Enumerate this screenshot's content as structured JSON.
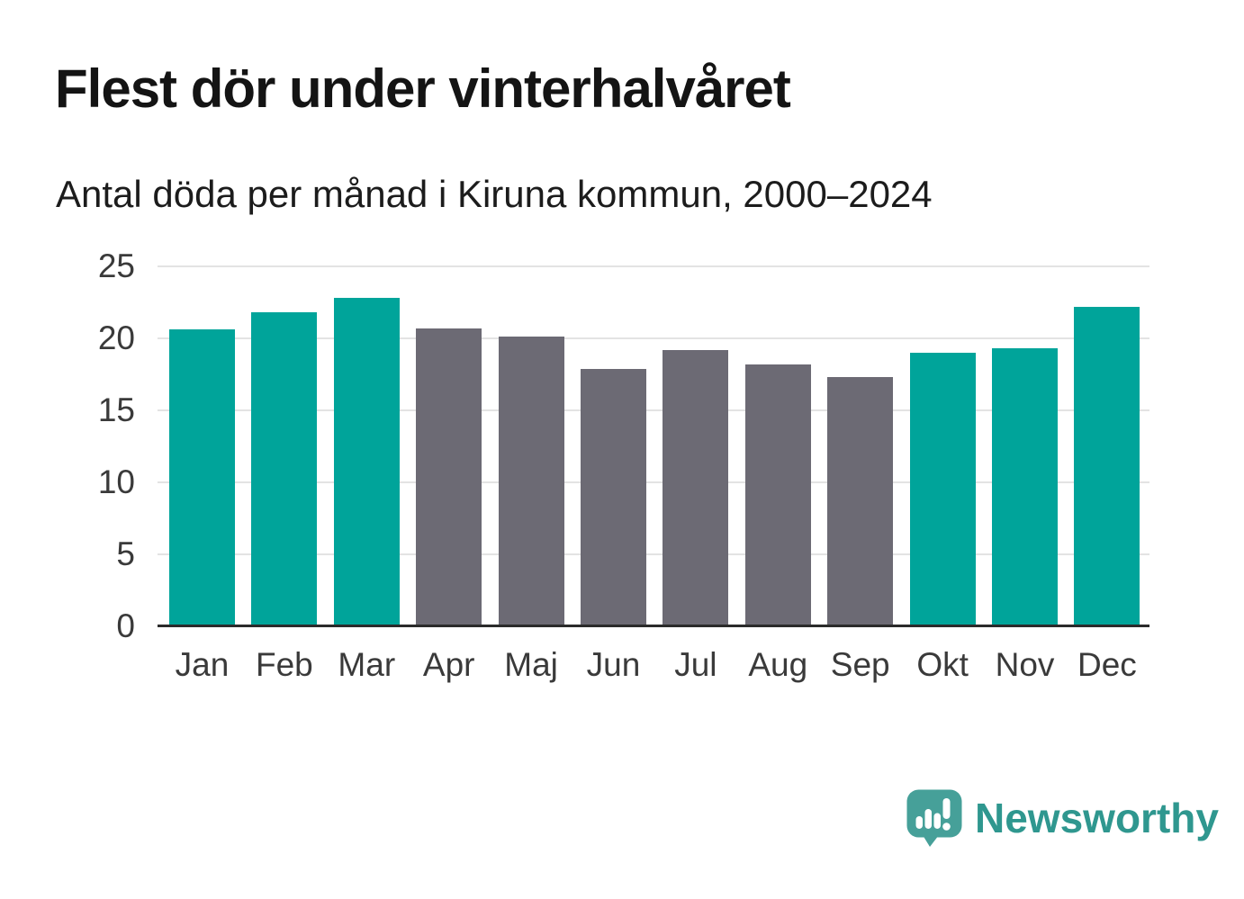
{
  "header": {
    "title": "Flest dör under vinterhalvåret",
    "subtitle": "Antal döda per månad i Kiruna kommun, 2000–2024"
  },
  "chart_data": {
    "type": "bar",
    "title": "Flest dör under vinterhalvåret",
    "subtitle": "Antal döda per månad i Kiruna kommun, 2000–2024",
    "categories": [
      "Jan",
      "Feb",
      "Mar",
      "Apr",
      "Maj",
      "Jun",
      "Jul",
      "Aug",
      "Sep",
      "Okt",
      "Nov",
      "Dec"
    ],
    "values": [
      20.6,
      21.8,
      22.8,
      20.7,
      20.1,
      17.9,
      19.2,
      18.2,
      17.3,
      19,
      19.3,
      22.2
    ],
    "groups": [
      "winter",
      "winter",
      "winter",
      "summer",
      "summer",
      "summer",
      "summer",
      "summer",
      "summer",
      "winter",
      "winter",
      "winter"
    ],
    "colors": {
      "winter": "#00a49a",
      "summer": "#6c6a74"
    },
    "xlabel": "",
    "ylabel": "",
    "ylim": [
      0,
      25
    ],
    "yticks": [
      0,
      5,
      10,
      15,
      20,
      25
    ],
    "grid": true,
    "legend": "none"
  },
  "footer": {
    "brand": "Newsworthy",
    "brand_text_color": "#2f978f",
    "brand_icon_color": "#46a099"
  },
  "style": {
    "winter_bar": "#00a49a",
    "summer_bar": "#6c6a74",
    "gridline": "#e3e3e3",
    "axis_line": "#2b2b2b",
    "label_color": "#3a3a3a"
  }
}
